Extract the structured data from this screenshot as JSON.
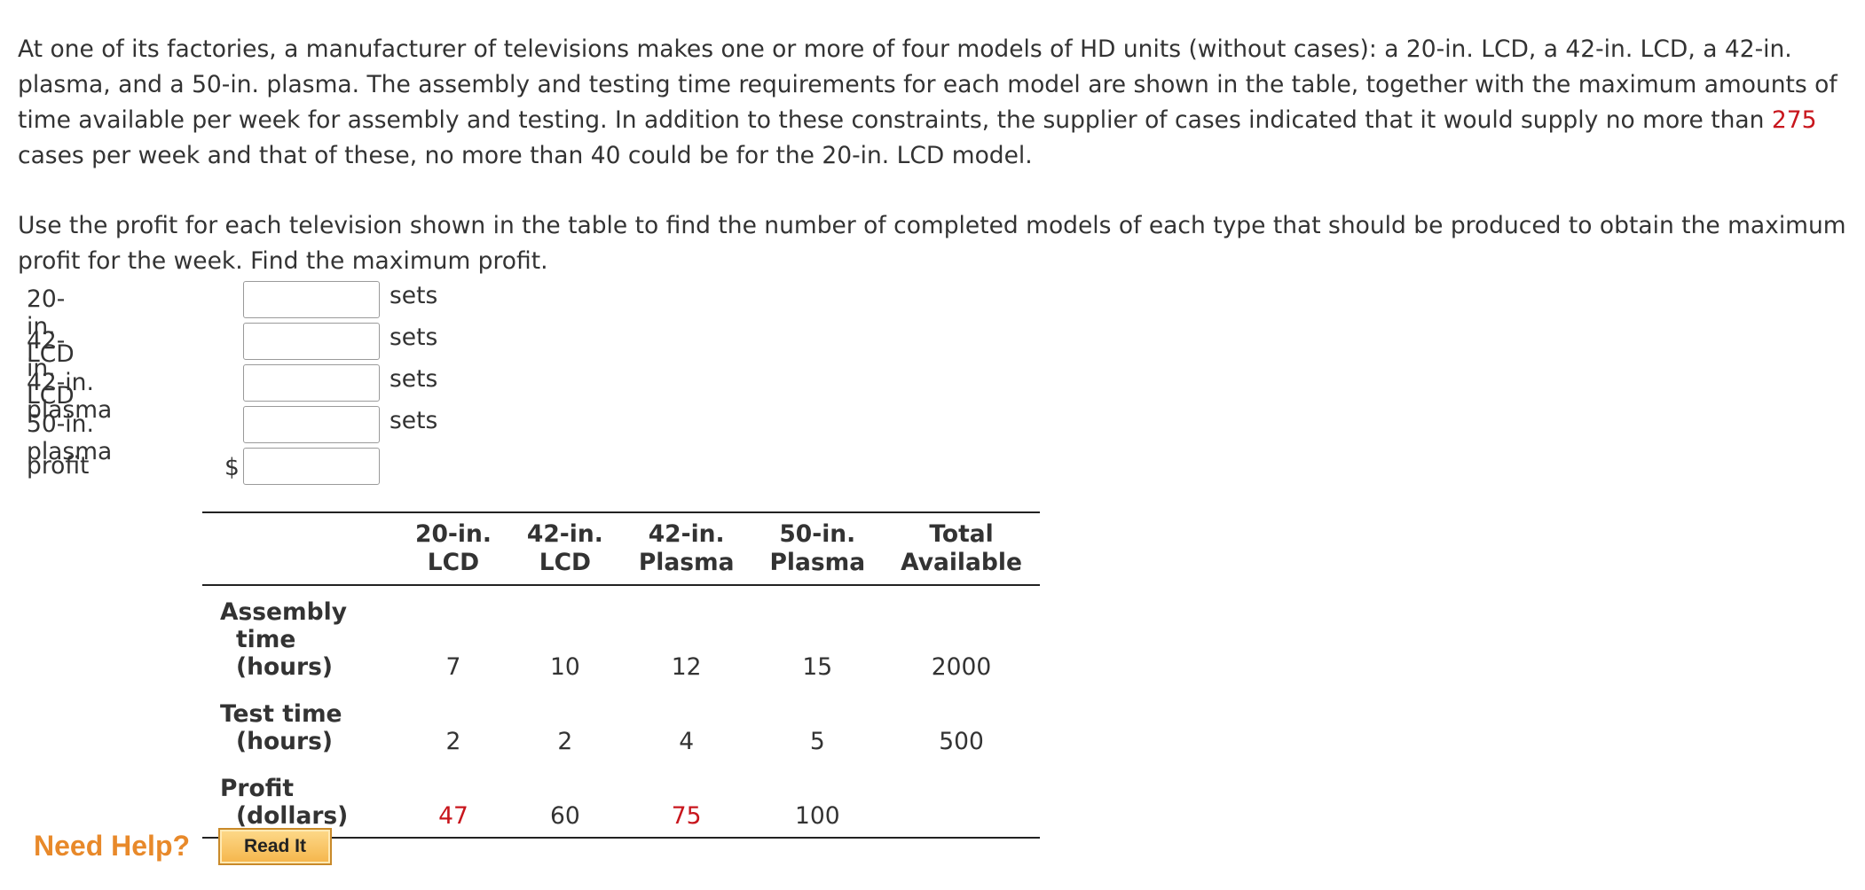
{
  "problem": {
    "p1_a": "At one of its factories, a manufacturer of televisions makes one or more of four models of HD units (without cases): a 20-in. LCD, a 42-in. LCD, a 42-in. plasma, and a 50-in. plasma. The assembly and testing time requirements for each model are shown in the table, together with the maximum amounts of time available per week for assembly and testing. In addition to these constraints, the supplier of cases indicated that it would supply no more than ",
    "p1_num": "275",
    "p1_b": " cases per week and that of these, no more than 40 could be for the 20-in. LCD model.",
    "p2": "Use the profit for each television shown in the table to find the number of completed models of each type that should be produced to obtain the maximum profit for the week. Find the maximum profit."
  },
  "answers": [
    {
      "label": "20-in. LCD",
      "value": "",
      "unit": "sets"
    },
    {
      "label": "42-in. LCD",
      "value": "",
      "unit": "sets"
    },
    {
      "label": "42-in. plasma",
      "value": "",
      "unit": "sets"
    },
    {
      "label": "50-in. plasma",
      "value": "",
      "unit": "sets"
    },
    {
      "label": "profit",
      "prefix": "$",
      "value": ""
    }
  ],
  "table": {
    "headers": [
      {
        "l1": "20-in.",
        "l2": "LCD"
      },
      {
        "l1": "42-in.",
        "l2": "LCD"
      },
      {
        "l1": "42-in.",
        "l2": "Plasma"
      },
      {
        "l1": "50-in.",
        "l2": "Plasma"
      },
      {
        "l1": "Total",
        "l2": "Available"
      }
    ],
    "rows": [
      {
        "l1": "Assembly",
        "l2": "time (hours)",
        "cells": [
          "7",
          "10",
          "12",
          "15",
          "2000"
        ]
      },
      {
        "l1": "Test time",
        "l2": "(hours)",
        "cells": [
          "2",
          "2",
          "4",
          "5",
          "500"
        ]
      },
      {
        "l1": "Profit",
        "l2": "(dollars)",
        "cells": [
          "47",
          "60",
          "75",
          "100",
          ""
        ]
      }
    ]
  },
  "help": {
    "label": "Need Help?",
    "read_it": "Read It"
  },
  "colors": {
    "highlight": "#c8161d",
    "help_orange": "#e8892a"
  }
}
